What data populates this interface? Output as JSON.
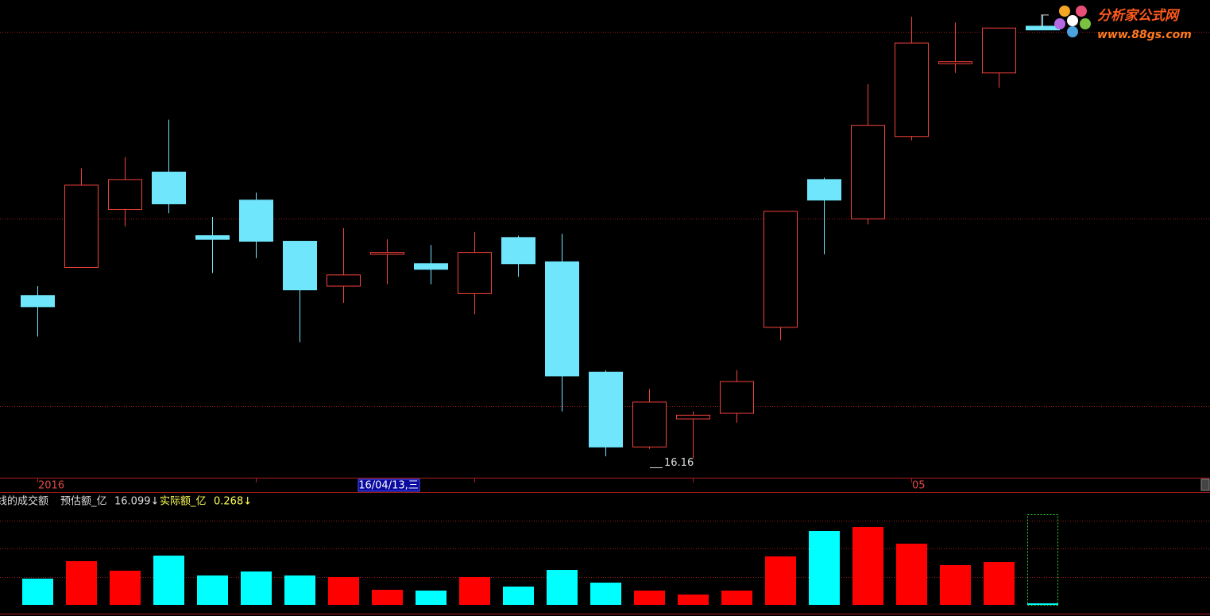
{
  "chart_data": {
    "type": "candlestick",
    "categories": [
      "2016",
      null,
      null,
      null,
      null,
      null,
      null,
      null,
      "16/04/13,三",
      null,
      null,
      null,
      null,
      null,
      null,
      null,
      null,
      null,
      null,
      null,
      "05",
      null,
      null,
      null
    ],
    "highlight_category": 8,
    "open": [
      17.03,
      17.18,
      17.49,
      17.69,
      17.35,
      17.54,
      17.32,
      17.08,
      17.25,
      17.2,
      17.04,
      17.34,
      17.21,
      16.62,
      16.22,
      16.37,
      16.4,
      16.86,
      17.65,
      17.44,
      17.88,
      18.27,
      18.22,
      18.47
    ],
    "high": [
      17.08,
      17.71,
      17.77,
      17.97,
      17.45,
      17.58,
      17.32,
      17.39,
      17.33,
      17.3,
      17.37,
      17.35,
      17.36,
      16.63,
      16.53,
      16.41,
      16.63,
      17.48,
      17.66,
      18.16,
      18.52,
      18.49,
      18.46,
      18.53
    ],
    "low": [
      16.81,
      17.18,
      17.4,
      17.47,
      17.15,
      17.23,
      16.78,
      16.99,
      17.09,
      17.09,
      16.93,
      17.13,
      16.41,
      16.17,
      16.21,
      16.16,
      16.35,
      16.79,
      17.25,
      17.41,
      17.86,
      18.22,
      18.14,
      18.45
    ],
    "close": [
      16.97,
      17.62,
      17.65,
      17.52,
      17.33,
      17.32,
      17.06,
      17.14,
      17.26,
      17.17,
      17.26,
      17.2,
      16.6,
      16.22,
      16.46,
      16.39,
      16.57,
      17.48,
      17.54,
      17.94,
      18.38,
      18.28,
      18.46,
      18.45
    ],
    "up_color": "#f2423c",
    "down_color": "#6fe6fc",
    "ylim": [
      16.06,
      18.61
    ],
    "ygrid": [
      16.44,
      17.44,
      18.44
    ],
    "volume": {
      "title": "线的成交额",
      "values": [
        4.66,
        7.77,
        6.07,
        8.75,
        5.22,
        5.93,
        5.22,
        4.94,
        2.68,
        2.54,
        4.94,
        3.25,
        6.21,
        3.95,
        2.54,
        1.84,
        2.54,
        8.61,
        13.13,
        13.84,
        10.87,
        7.06,
        7.62
      ],
      "estimate": {
        "name": "预估额_亿",
        "value": 16.099,
        "label": "16.099↓"
      },
      "actual": {
        "name": "实际额_亿",
        "value": 0.268,
        "label": "0.268↓"
      },
      "ylim": [
        0,
        19.91
      ],
      "ygrid": [
        5,
        10,
        15
      ],
      "up_color": "#ff0000",
      "down_color": "#00ffff"
    }
  },
  "watermark": {
    "title": "分析家公式网",
    "url": "www.88gs.com"
  }
}
